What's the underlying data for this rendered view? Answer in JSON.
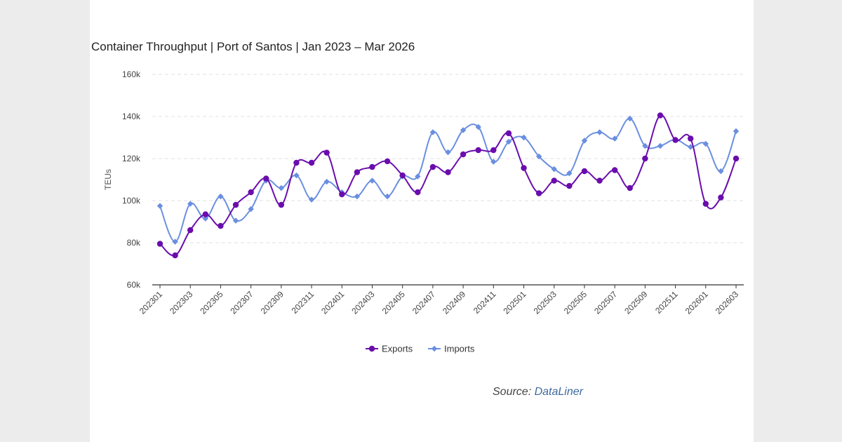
{
  "chart_data": {
    "type": "line",
    "title": "Container Throughput | Port of Santos | Jan 2023 – Mar 2026",
    "xlabel": "",
    "ylabel": "TEUs",
    "ylim": [
      60000,
      160000
    ],
    "yticks": [
      "60k",
      "80k",
      "100k",
      "120k",
      "140k",
      "160k"
    ],
    "ytick_values": [
      60000,
      80000,
      100000,
      120000,
      140000,
      160000
    ],
    "grid": "horizontal dashed",
    "legend_position": "bottom-center",
    "x": [
      "202301",
      "202302",
      "202303",
      "202304",
      "202305",
      "202306",
      "202307",
      "202308",
      "202309",
      "202310",
      "202311",
      "202312",
      "202401",
      "202402",
      "202403",
      "202404",
      "202405",
      "202406",
      "202407",
      "202408",
      "202409",
      "202410",
      "202411",
      "202412",
      "202501",
      "202502",
      "202503",
      "202504",
      "202505",
      "202506",
      "202507",
      "202508",
      "202509",
      "202510",
      "202511",
      "202512",
      "202601",
      "202602",
      "202603"
    ],
    "xtick_labels": [
      "202301",
      "202303",
      "202305",
      "202307",
      "202309",
      "202311",
      "202401",
      "202403",
      "202405",
      "202407",
      "202409",
      "202411",
      "202501",
      "202503",
      "202505",
      "202507",
      "202509",
      "202511",
      "202601",
      "202603"
    ],
    "series": [
      {
        "name": "Exports",
        "color": "#6a0dad",
        "marker": "circle",
        "values": [
          79500,
          74000,
          86000,
          93500,
          88000,
          98000,
          104000,
          110500,
          98000,
          118000,
          118000,
          122800,
          103000,
          113500,
          116000,
          118700,
          112000,
          104000,
          116000,
          113500,
          122000,
          124000,
          124000,
          132000,
          115500,
          103500,
          109500,
          107000,
          114000,
          109500,
          114500,
          106000,
          120000,
          140500,
          128800,
          129500,
          98500,
          101500,
          120000
        ]
      },
      {
        "name": "Imports",
        "color": "#6b8fe0",
        "marker": "diamond",
        "values": [
          97500,
          80500,
          98500,
          91500,
          102000,
          90500,
          96000,
          109500,
          106000,
          112000,
          100500,
          109000,
          104000,
          102000,
          109500,
          102000,
          111500,
          111500,
          132500,
          123000,
          133500,
          135000,
          118500,
          128000,
          130000,
          121000,
          115000,
          113000,
          128500,
          132500,
          129500,
          139000,
          126000,
          126000,
          129000,
          125500,
          127000,
          114000,
          133000
        ]
      }
    ]
  },
  "source": {
    "prefix": "Source: ",
    "name": "DataLiner"
  }
}
